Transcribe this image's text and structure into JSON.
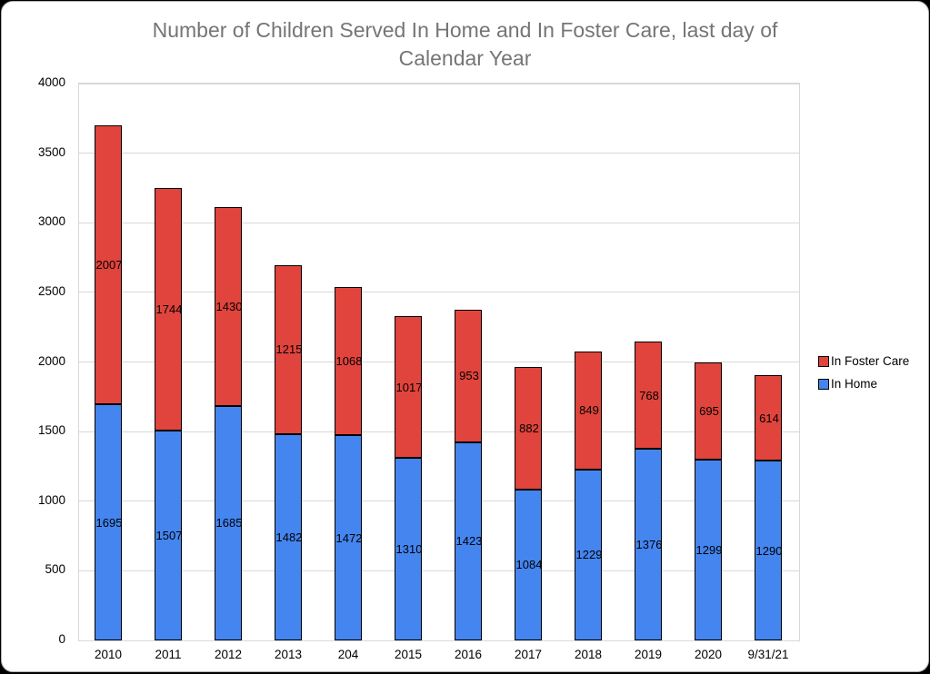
{
  "window": {
    "background": "#000000",
    "card_background": "#ffffff",
    "border_color": "#b3b3b3"
  },
  "chart_data": {
    "type": "bar",
    "subtype": "stacked-vertical",
    "title": "Number of Children Served In Home and In Foster Care, last day of Calendar Year",
    "title_lines": [
      "Number of Children Served In Home and In Foster Care, last day of",
      "Calendar Year"
    ],
    "title_color": "#757575",
    "categories": [
      "2010",
      "2011",
      "2012",
      "2013",
      "204",
      "2015",
      "2016",
      "2017",
      "2018",
      "2019",
      "2020",
      "9/31/21"
    ],
    "series": [
      {
        "name": "In Home",
        "color": "#4485F0",
        "values": [
          1695,
          1507,
          1685,
          1482,
          1472,
          1310,
          1423,
          1084,
          1229,
          1376,
          1299,
          1290
        ]
      },
      {
        "name": "In Foster Care",
        "color": "#E0443C",
        "values": [
          2007,
          1744,
          1430,
          1215,
          1068,
          1017,
          953,
          882,
          849,
          768,
          695,
          614
        ]
      }
    ],
    "data_labels_shown": true,
    "xlabel": "",
    "ylabel": "",
    "ylim": [
      0,
      4000
    ],
    "ytick_step": 500,
    "yticks": [
      "0",
      "500",
      "1000",
      "1500",
      "2000",
      "2500",
      "3000",
      "3500",
      "4000"
    ],
    "grid": true,
    "gridline_color": "#d8d8d8",
    "legend_position": "right",
    "legend": [
      {
        "label": "In Foster Care",
        "color": "#E0443C"
      },
      {
        "label": "In Home",
        "color": "#4485F0"
      }
    ]
  }
}
